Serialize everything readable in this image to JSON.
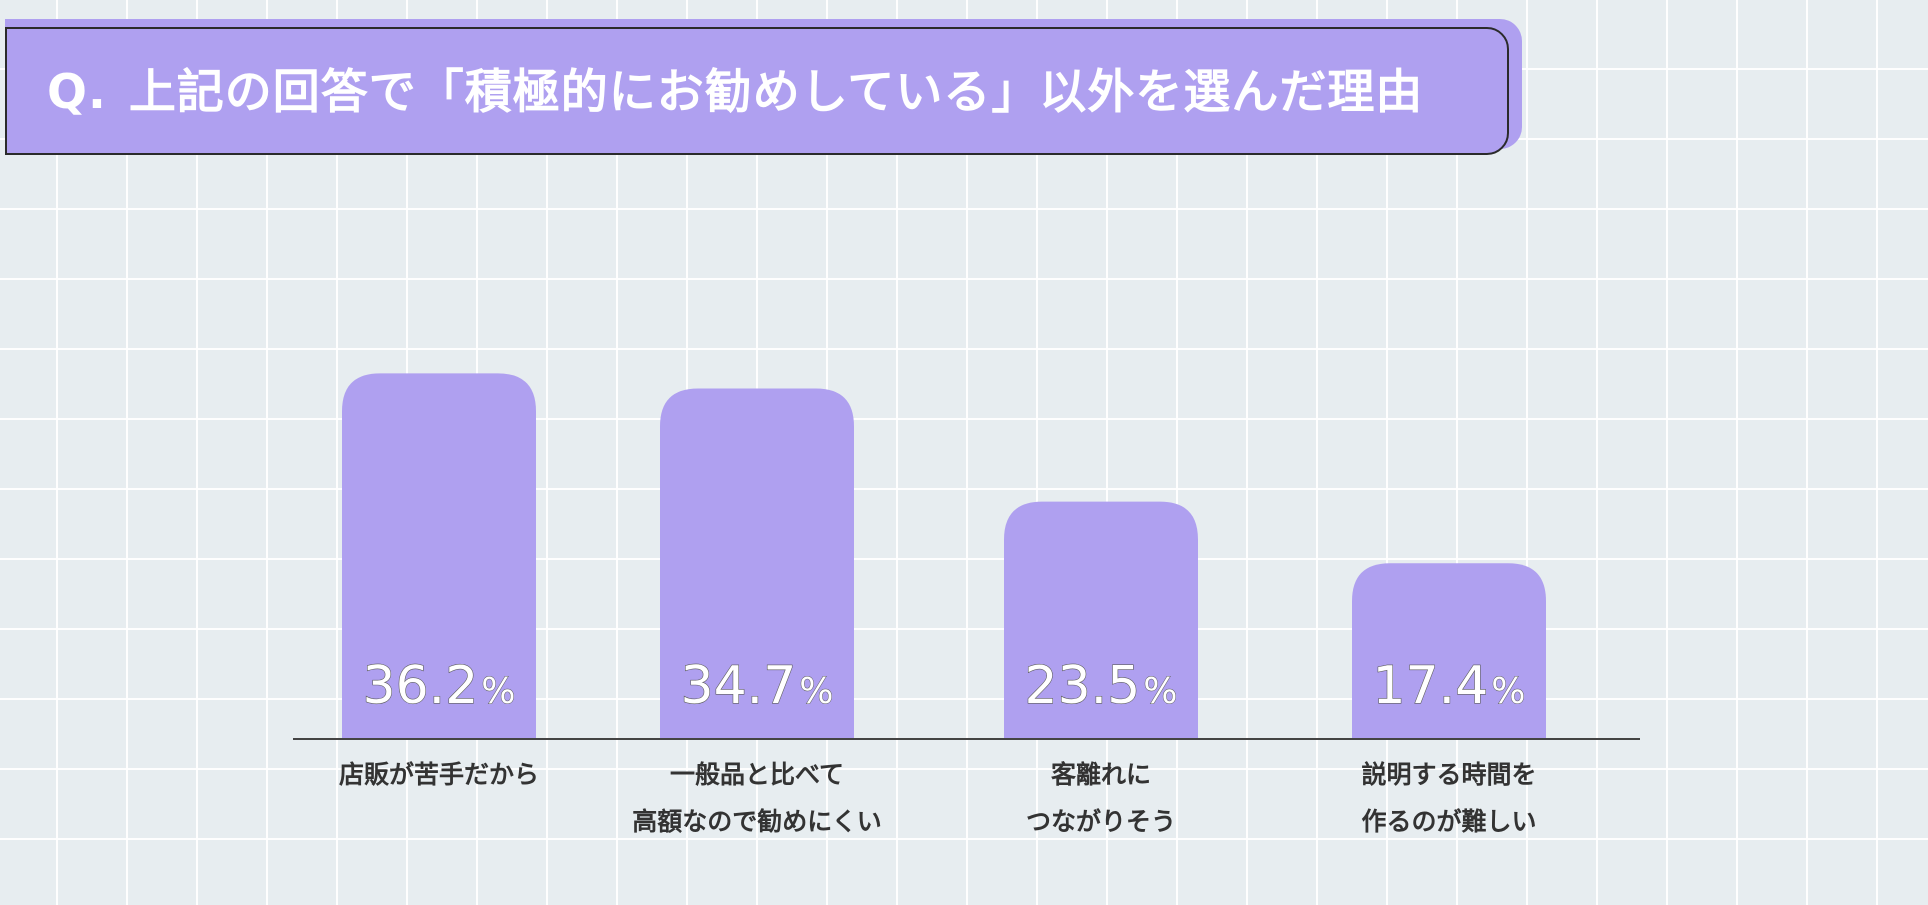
{
  "title": {
    "prefix": "Q.",
    "text": "上記の回答で「積極的にお勧めしている」以外を選んだ理由"
  },
  "colors": {
    "bar": "#afa0f0",
    "background": "#e7edf0",
    "axis": "#444444",
    "label": "#333333"
  },
  "chart_data": {
    "type": "bar",
    "title": "上記の回答で「積極的にお勧めしている」以外を選んだ理由",
    "categories": [
      [
        "店販が苦手だから"
      ],
      [
        "一般品と比べて",
        "高額なので勧めにくい"
      ],
      [
        "客離れに",
        "つながりそう"
      ],
      [
        "説明する時間を",
        "作るのが難しい"
      ]
    ],
    "values": [
      36.2,
      34.7,
      23.5,
      17.4
    ],
    "value_labels": [
      "36.2",
      "34.7",
      "23.5",
      "17.4"
    ],
    "unit": "%",
    "xlabel": "",
    "ylabel": "",
    "ylim": [
      0,
      40
    ],
    "grid": false,
    "legend": "none"
  }
}
